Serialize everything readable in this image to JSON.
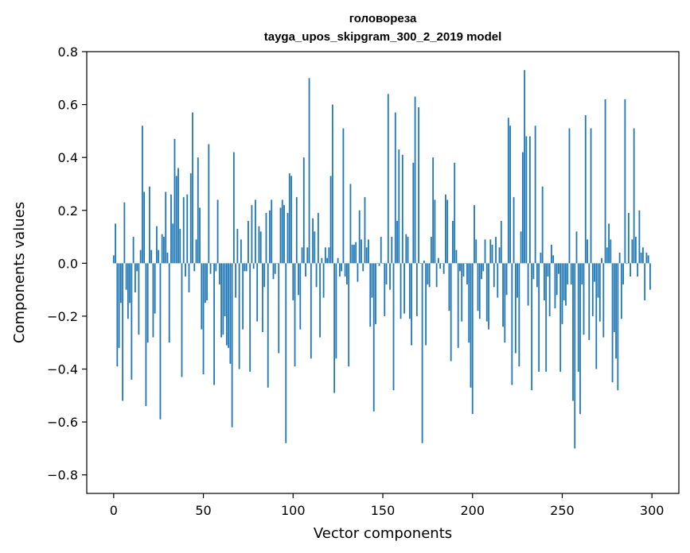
{
  "chart_data": {
    "type": "bar",
    "title": "головореза",
    "subtitle": "tayga_upos_skipgram_300_2_2019 model",
    "xlabel": "Vector components",
    "ylabel": "Components values",
    "xlim": [
      -15,
      315
    ],
    "ylim": [
      -0.87,
      0.8
    ],
    "xticks": [
      0,
      50,
      100,
      150,
      200,
      250,
      300
    ],
    "yticks": [
      -0.8,
      -0.6,
      -0.4,
      -0.2,
      0.0,
      0.2,
      0.4,
      0.6,
      0.8
    ],
    "ytick_labels": [
      "−0.8",
      "−0.6",
      "−0.4",
      "−0.2",
      "0.0",
      "0.2",
      "0.4",
      "0.6",
      "0.8"
    ],
    "bar_color": "#1f77b4",
    "values": [
      0.03,
      0.15,
      -0.39,
      -0.32,
      -0.15,
      -0.52,
      0.23,
      -0.1,
      -0.21,
      -0.15,
      -0.44,
      0.1,
      -0.11,
      -0.03,
      -0.27,
      0.05,
      0.52,
      0.27,
      -0.54,
      -0.3,
      0.29,
      0.05,
      -0.28,
      -0.19,
      0.14,
      0.05,
      -0.59,
      0.11,
      0.1,
      0.27,
      0.04,
      -0.3,
      0.26,
      0.15,
      0.47,
      0.33,
      0.36,
      0.13,
      -0.43,
      0.25,
      -0.05,
      0.26,
      -0.11,
      0.34,
      0.57,
      -0.03,
      0.09,
      0.4,
      0.21,
      -0.25,
      -0.42,
      -0.15,
      -0.14,
      0.45,
      -0.04,
      0.0,
      -0.46,
      -0.03,
      0.24,
      -0.08,
      -0.28,
      -0.27,
      -0.2,
      -0.31,
      -0.32,
      -0.38,
      -0.62,
      0.42,
      -0.13,
      0.13,
      -0.4,
      0.09,
      -0.25,
      -0.03,
      -0.03,
      0.16,
      -0.41,
      0.22,
      -0.02,
      0.24,
      -0.22,
      0.14,
      0.12,
      -0.26,
      -0.09,
      0.19,
      -0.47,
      0.2,
      0.24,
      -0.06,
      -0.04,
      0.0,
      -0.34,
      0.21,
      0.24,
      0.22,
      -0.68,
      0.19,
      0.34,
      0.33,
      -0.14,
      -0.39,
      0.25,
      -0.12,
      -0.25,
      0.06,
      0.4,
      -0.05,
      0.06,
      0.7,
      -0.36,
      0.17,
      0.12,
      -0.09,
      0.19,
      -0.28,
      0.02,
      -0.13,
      0.06,
      0.02,
      0.06,
      0.33,
      0.6,
      -0.49,
      -0.36,
      0.02,
      -0.05,
      -0.03,
      0.51,
      -0.05,
      -0.08,
      -0.39,
      0.3,
      0.07,
      0.07,
      0.08,
      -0.07,
      0.2,
      0.09,
      -0.03,
      0.25,
      0.06,
      0.09,
      -0.24,
      -0.13,
      -0.56,
      -0.23,
      0.0,
      -0.01,
      0.1,
      0.0,
      -0.2,
      -0.08,
      0.64,
      -0.1,
      0.1,
      -0.48,
      0.57,
      0.16,
      0.43,
      -0.21,
      0.41,
      -0.19,
      0.11,
      0.1,
      -0.21,
      -0.31,
      0.38,
      0.63,
      -0.2,
      0.59,
      0.0,
      -0.68,
      0.01,
      -0.31,
      -0.08,
      -0.09,
      0.1,
      0.4,
      0.24,
      -0.09,
      0.02,
      -0.02,
      0.0,
      -0.04,
      0.26,
      0.24,
      -0.18,
      -0.37,
      0.16,
      0.38,
      0.05,
      -0.32,
      -0.03,
      -0.22,
      -0.05,
      0.0,
      -0.08,
      -0.3,
      -0.47,
      -0.57,
      0.22,
      0.09,
      -0.18,
      -0.21,
      -0.06,
      -0.03,
      0.09,
      -0.22,
      -0.25,
      0.09,
      0.07,
      -0.09,
      0.1,
      -0.13,
      0.06,
      0.16,
      -0.24,
      -0.3,
      -0.12,
      0.55,
      0.52,
      -0.46,
      0.25,
      -0.34,
      -0.13,
      -0.39,
      0.12,
      0.42,
      0.73,
      0.48,
      -0.16,
      0.48,
      -0.48,
      -0.06,
      0.52,
      -0.09,
      -0.41,
      0.04,
      0.29,
      -0.14,
      -0.41,
      -0.05,
      -0.2,
      0.07,
      0.03,
      -0.17,
      -0.12,
      -0.04,
      -0.41,
      -0.23,
      -0.14,
      -0.16,
      -0.08,
      0.51,
      -0.08,
      -0.52,
      -0.7,
      0.12,
      -0.41,
      -0.57,
      -0.08,
      -0.27,
      0.56,
      0.09,
      -0.29,
      0.51,
      -0.2,
      -0.07,
      -0.4,
      -0.13,
      -0.22,
      0.02,
      -0.28,
      0.62,
      0.06,
      0.15,
      0.09,
      -0.45,
      -0.26,
      -0.36,
      -0.48,
      0.04,
      -0.21,
      -0.08,
      0.62,
      0.0,
      0.19,
      -0.05,
      0.09,
      0.51,
      0.1,
      -0.05,
      0.2,
      0.04,
      0.06,
      -0.14,
      0.04,
      0.03,
      -0.1
    ]
  }
}
